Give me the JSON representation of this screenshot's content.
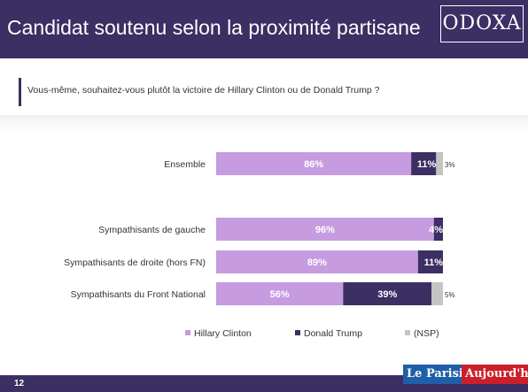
{
  "header": {
    "title": "Candidat soutenu selon la proximité partisane",
    "logo": "ODOXA"
  },
  "question": "Vous-même, souhaitez-vous plutôt la victoire de Hillary Clinton ou de Donald Trump ?",
  "footer": {
    "page_number": "12",
    "paper_1": "Le Parisien",
    "paper_2": "Aujourd'hui"
  },
  "chart_data": {
    "type": "bar",
    "orientation": "horizontal",
    "stacked": true,
    "categories": [
      "Ensemble",
      "Sympathisants de gauche",
      "Sympathisants de droite (hors FN)",
      "Sympathisants du Front National"
    ],
    "series": [
      {
        "name": "Hillary Clinton",
        "values": [
          86,
          96,
          89,
          56
        ],
        "labels": [
          "86%",
          "96%",
          "89%",
          "56%"
        ],
        "color": "#c69be0"
      },
      {
        "name": "Donald Trump",
        "values": [
          11,
          4,
          11,
          39
        ],
        "labels": [
          "11%",
          "4%",
          "11%",
          "39%"
        ],
        "color": "#3b2f63"
      },
      {
        "name": "(NSP)",
        "values": [
          3,
          0,
          0,
          5
        ],
        "labels": [
          "3%",
          "",
          "",
          "5%"
        ],
        "color": "#c4c4c4"
      }
    ],
    "xlim": [
      0,
      100
    ],
    "grid": false,
    "legend": "bottom"
  }
}
